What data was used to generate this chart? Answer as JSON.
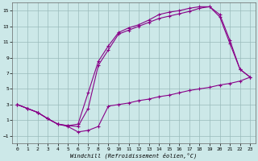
{
  "xlabel": "Windchill (Refroidissement éolien,°C)",
  "bg_color": "#cce8e8",
  "line_color": "#880088",
  "xlim": [
    -0.5,
    23.5
  ],
  "ylim": [
    -2,
    16
  ],
  "xticks": [
    0,
    1,
    2,
    3,
    4,
    5,
    6,
    7,
    8,
    9,
    10,
    11,
    12,
    13,
    14,
    15,
    16,
    17,
    18,
    19,
    20,
    21,
    22,
    23
  ],
  "yticks": [
    -1,
    1,
    3,
    5,
    7,
    9,
    11,
    13,
    15
  ],
  "line1_x": [
    0,
    1,
    2,
    3,
    4,
    5,
    6,
    7,
    8,
    9,
    10,
    11,
    12,
    13,
    14,
    15,
    16,
    17,
    18,
    19,
    20,
    21,
    22,
    23
  ],
  "line1_y": [
    3.0,
    2.5,
    2.0,
    1.2,
    0.5,
    0.3,
    0.5,
    4.5,
    8.5,
    10.5,
    12.2,
    12.8,
    13.2,
    13.8,
    14.5,
    14.8,
    15.0,
    15.3,
    15.5,
    15.5,
    14.5,
    11.2,
    7.5,
    6.5
  ],
  "line2_x": [
    0,
    1,
    2,
    3,
    4,
    5,
    6,
    7,
    8,
    9,
    10,
    11,
    12,
    13,
    14,
    15,
    16,
    17,
    18,
    19,
    20,
    21,
    22,
    23
  ],
  "line2_y": [
    3.0,
    2.5,
    2.0,
    1.2,
    0.5,
    0.3,
    0.2,
    2.5,
    8.0,
    10.0,
    12.0,
    12.5,
    13.0,
    13.5,
    14.0,
    14.3,
    14.6,
    14.9,
    15.3,
    15.5,
    14.2,
    10.8,
    7.5,
    6.5
  ],
  "line3_x": [
    0,
    1,
    2,
    3,
    4,
    5,
    6,
    7,
    8,
    9,
    10,
    11,
    12,
    13,
    14,
    15,
    16,
    17,
    18,
    19,
    20,
    21,
    22,
    23
  ],
  "line3_y": [
    3.0,
    2.5,
    2.0,
    1.2,
    0.5,
    0.2,
    -0.5,
    -0.3,
    0.2,
    2.8,
    3.0,
    3.2,
    3.5,
    3.7,
    4.0,
    4.2,
    4.5,
    4.8,
    5.0,
    5.2,
    5.5,
    5.7,
    6.0,
    6.5
  ]
}
